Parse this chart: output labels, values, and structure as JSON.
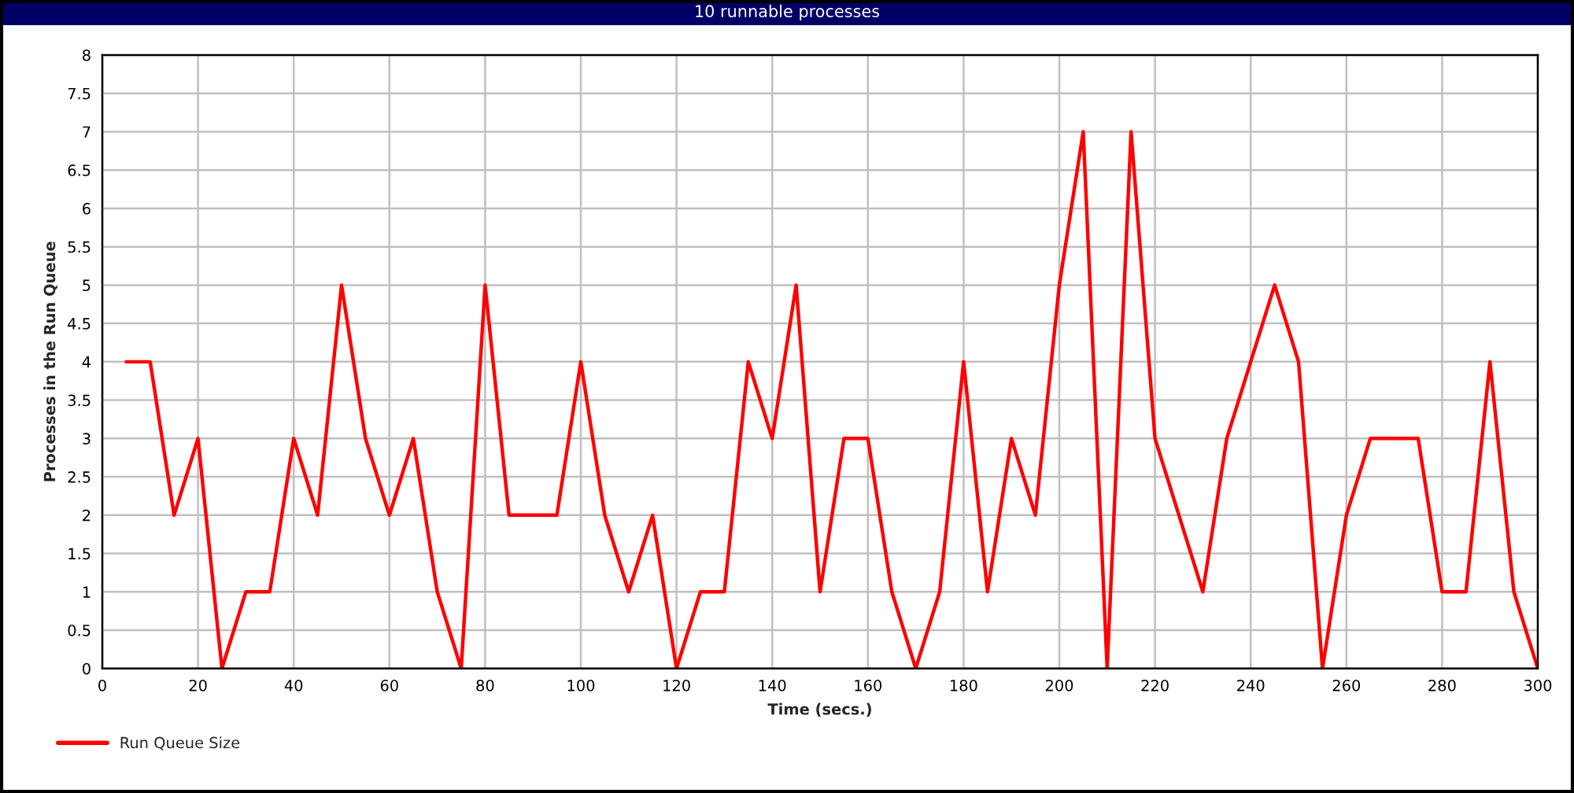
{
  "chart_data": {
    "type": "line",
    "title": "10 runnable processes",
    "xlabel": "Time (secs.)",
    "ylabel": "Processes in the Run Queue",
    "x": [
      5,
      10,
      15,
      20,
      25,
      30,
      35,
      40,
      45,
      50,
      55,
      60,
      65,
      70,
      75,
      80,
      85,
      90,
      95,
      100,
      105,
      110,
      115,
      120,
      125,
      130,
      135,
      140,
      145,
      150,
      155,
      160,
      165,
      170,
      175,
      180,
      185,
      190,
      195,
      200,
      205,
      210,
      215,
      220,
      225,
      230,
      235,
      240,
      245,
      250,
      255,
      260,
      265,
      270,
      275,
      280,
      285,
      290,
      295,
      300
    ],
    "series": [
      {
        "name": "Run Queue Size",
        "color": "#ff0000",
        "values": [
          4,
          4,
          2,
          3,
          0,
          1,
          1,
          3,
          2,
          5,
          3,
          2,
          3,
          1,
          0,
          5,
          2,
          2,
          2,
          4,
          2,
          1,
          2,
          0,
          1,
          1,
          4,
          3,
          5,
          1,
          3,
          3,
          1,
          0,
          1,
          4,
          1,
          3,
          2,
          5,
          7,
          0,
          7,
          3,
          2,
          1,
          3,
          4,
          5,
          4,
          0,
          2,
          3,
          3,
          3,
          1,
          1,
          4,
          1,
          0
        ]
      }
    ],
    "xlim": [
      0,
      300
    ],
    "xticks": [
      0,
      20,
      40,
      60,
      80,
      100,
      120,
      140,
      160,
      180,
      200,
      220,
      240,
      260,
      280,
      300
    ],
    "ylim": [
      0,
      8
    ],
    "yticks": [
      0,
      0.5,
      1,
      1.5,
      2,
      2.5,
      3,
      3.5,
      4,
      4.5,
      5,
      5.5,
      6,
      6.5,
      7,
      7.5,
      8
    ],
    "grid": true,
    "legend": "bottom left",
    "line_style": "solid"
  }
}
